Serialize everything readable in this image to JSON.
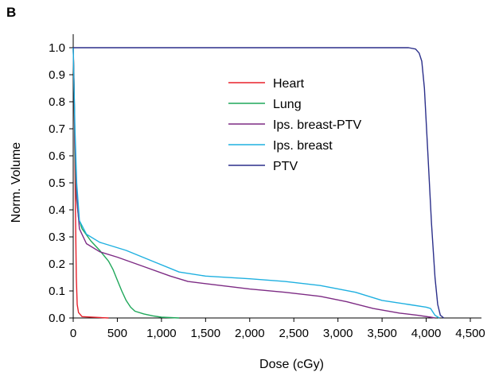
{
  "panel_label": "B",
  "chart_data": {
    "type": "line",
    "title": "",
    "xlabel": "Dose (cGy)",
    "ylabel": "Norm. Volume",
    "xlim": [
      0,
      4700
    ],
    "ylim": [
      0,
      1.0
    ],
    "xticks": [
      0,
      500,
      1000,
      1500,
      2000,
      2500,
      3000,
      3500,
      4000,
      4500
    ],
    "xtick_labels": [
      "0",
      "500",
      "1,000",
      "1,500",
      "2,000",
      "2,500",
      "3,000",
      "3,500",
      "4,000",
      "4,500"
    ],
    "yticks": [
      0.0,
      0.1,
      0.2,
      0.3,
      0.4,
      0.5,
      0.6,
      0.7,
      0.8,
      0.9,
      1.0
    ],
    "ytick_labels": [
      "0.0",
      "0.1",
      "0.2",
      "0.3",
      "0.4",
      "0.5",
      "0.6",
      "0.7",
      "0.8",
      "0.9",
      "1.0"
    ],
    "grid": false,
    "legend_position": "top-center",
    "series": [
      {
        "name": "Heart",
        "color": "#e8202a",
        "points": [
          [
            0,
            1.0
          ],
          [
            8,
            0.9
          ],
          [
            15,
            0.7
          ],
          [
            25,
            0.4
          ],
          [
            35,
            0.15
          ],
          [
            45,
            0.05
          ],
          [
            60,
            0.02
          ],
          [
            100,
            0.005
          ],
          [
            400,
            0.0
          ]
        ]
      },
      {
        "name": "Lung",
        "color": "#1fa75a",
        "points": [
          [
            0,
            1.0
          ],
          [
            10,
            0.85
          ],
          [
            20,
            0.6
          ],
          [
            35,
            0.45
          ],
          [
            60,
            0.37
          ],
          [
            100,
            0.33
          ],
          [
            200,
            0.285
          ],
          [
            300,
            0.25
          ],
          [
            400,
            0.21
          ],
          [
            450,
            0.18
          ],
          [
            500,
            0.14
          ],
          [
            550,
            0.1
          ],
          [
            600,
            0.065
          ],
          [
            650,
            0.04
          ],
          [
            700,
            0.025
          ],
          [
            800,
            0.015
          ],
          [
            900,
            0.008
          ],
          [
            1000,
            0.003
          ],
          [
            1200,
            0.0
          ]
        ]
      },
      {
        "name": "Ips. breast-PTV",
        "color": "#7d2b84",
        "points": [
          [
            0,
            1.0
          ],
          [
            10,
            0.85
          ],
          [
            20,
            0.65
          ],
          [
            40,
            0.45
          ],
          [
            70,
            0.33
          ],
          [
            150,
            0.275
          ],
          [
            300,
            0.245
          ],
          [
            500,
            0.225
          ],
          [
            800,
            0.19
          ],
          [
            1100,
            0.155
          ],
          [
            1300,
            0.135
          ],
          [
            1600,
            0.123
          ],
          [
            2000,
            0.107
          ],
          [
            2400,
            0.095
          ],
          [
            2800,
            0.08
          ],
          [
            3100,
            0.06
          ],
          [
            3400,
            0.035
          ],
          [
            3700,
            0.018
          ],
          [
            3900,
            0.01
          ],
          [
            4050,
            0.003
          ],
          [
            4100,
            0.0
          ]
        ]
      },
      {
        "name": "Ips. breast",
        "color": "#1fb0e0",
        "points": [
          [
            0,
            1.0
          ],
          [
            10,
            0.85
          ],
          [
            20,
            0.7
          ],
          [
            40,
            0.5
          ],
          [
            70,
            0.36
          ],
          [
            150,
            0.31
          ],
          [
            300,
            0.28
          ],
          [
            600,
            0.25
          ],
          [
            900,
            0.21
          ],
          [
            1200,
            0.17
          ],
          [
            1500,
            0.155
          ],
          [
            2000,
            0.145
          ],
          [
            2400,
            0.135
          ],
          [
            2800,
            0.12
          ],
          [
            3200,
            0.095
          ],
          [
            3500,
            0.065
          ],
          [
            3800,
            0.05
          ],
          [
            4000,
            0.04
          ],
          [
            4050,
            0.035
          ],
          [
            4100,
            0.01
          ],
          [
            4150,
            0.0
          ]
        ]
      },
      {
        "name": "PTV",
        "color": "#2b2f8a",
        "points": [
          [
            0,
            1.0
          ],
          [
            3800,
            1.0
          ],
          [
            3880,
            0.995
          ],
          [
            3920,
            0.98
          ],
          [
            3950,
            0.95
          ],
          [
            3980,
            0.85
          ],
          [
            4020,
            0.6
          ],
          [
            4060,
            0.35
          ],
          [
            4100,
            0.15
          ],
          [
            4130,
            0.05
          ],
          [
            4160,
            0.01
          ],
          [
            4200,
            0.0
          ]
        ]
      }
    ]
  }
}
